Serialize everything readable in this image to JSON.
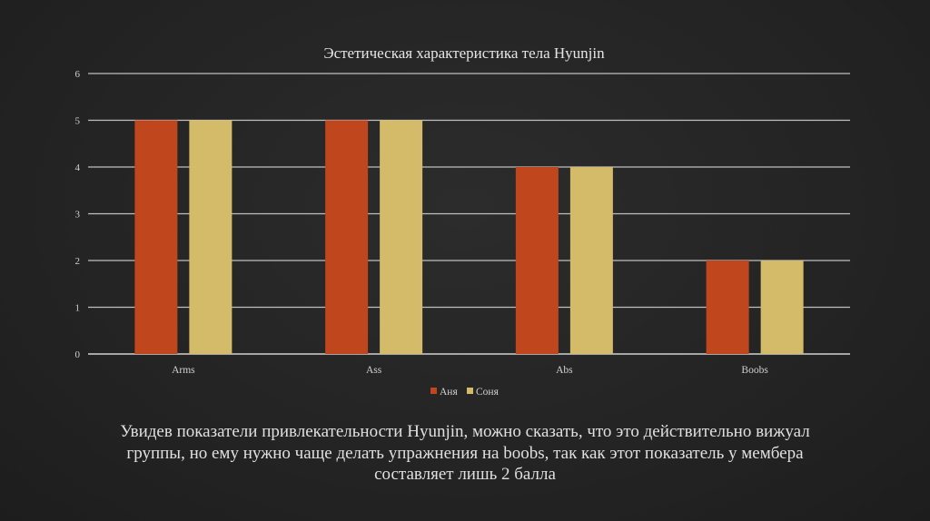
{
  "chart_data": {
    "type": "bar",
    "title": "Эстетическая характеристика тела Hyunjin",
    "categories": [
      "Arms",
      "Ass",
      "Abs",
      "Boobs"
    ],
    "series": [
      {
        "name": "Аня",
        "values": [
          5,
          5,
          4,
          2
        ],
        "color": "#c0461e"
      },
      {
        "name": "Соня",
        "values": [
          5,
          5,
          4,
          2
        ],
        "color": "#d4bb6a"
      }
    ],
    "xlabel": "",
    "ylabel": "",
    "ylim": [
      0,
      6
    ],
    "yticks": [
      "0",
      "1",
      "2",
      "3",
      "4",
      "5",
      "6"
    ],
    "grid": true,
    "legend_position": "bottom"
  },
  "description": {
    "line1": "Увидев показатели привлекательности Hyunjin, можно сказать, что это действительно вижуал",
    "line2": "группы, но ему нужно чаще делать упражнения на boobs, так как этот показатель у мембера",
    "line3": "составляет лишь 2 балла"
  }
}
